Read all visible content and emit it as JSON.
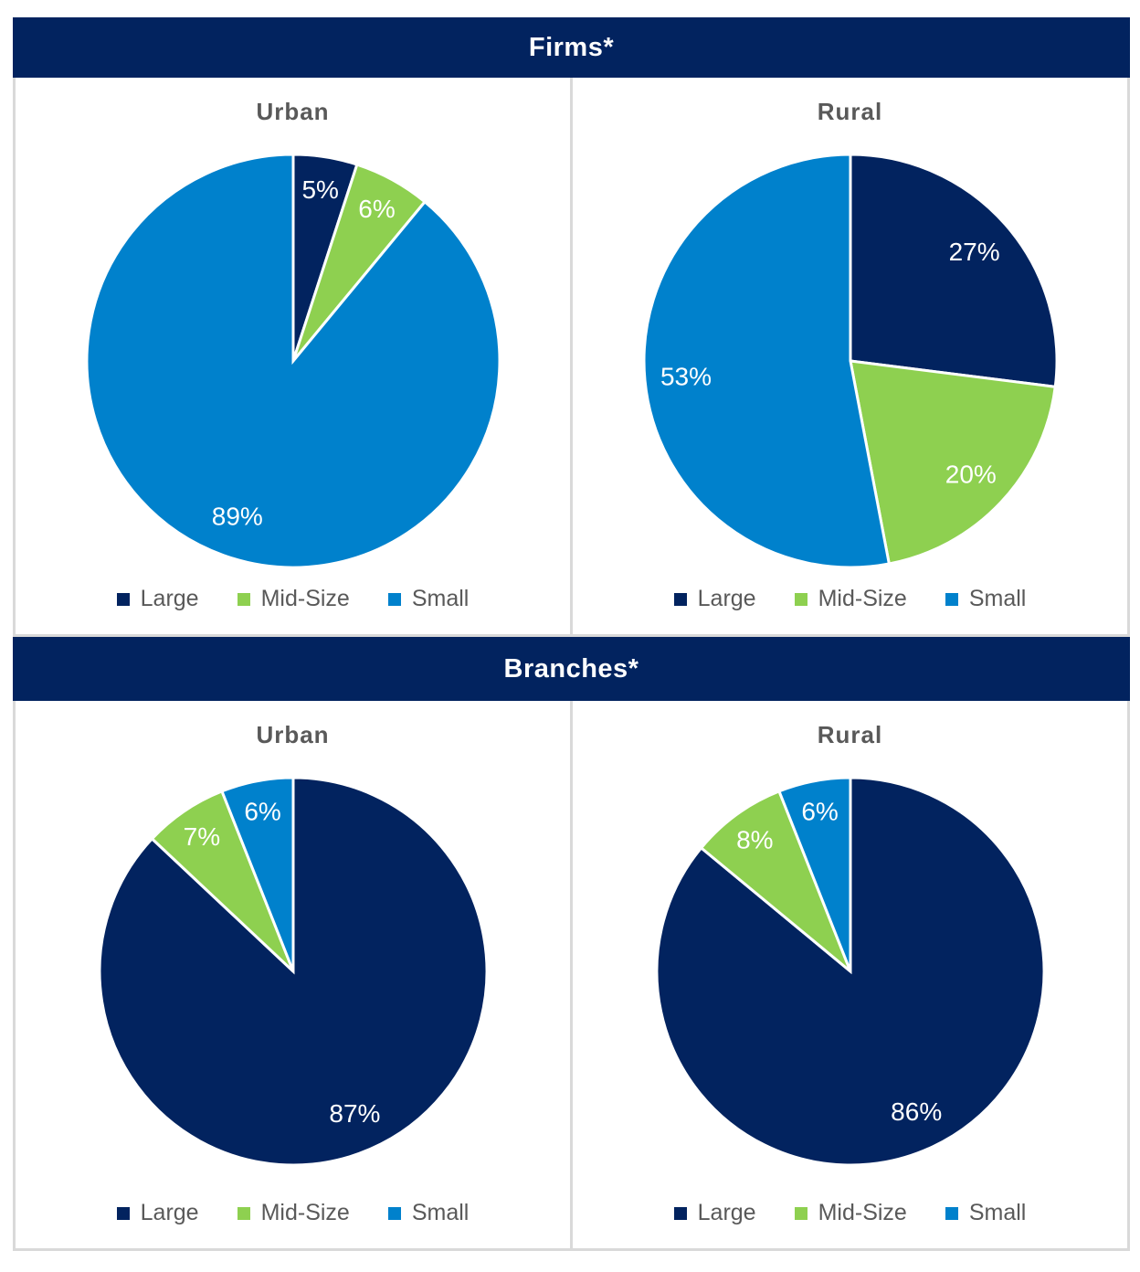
{
  "panels": [
    {
      "title": "Firms*"
    },
    {
      "title": "Branches*"
    }
  ],
  "legend": {
    "items": [
      {
        "label": "Large",
        "color": "#02235f"
      },
      {
        "label": "Mid-Size",
        "color": "#8ed050"
      },
      {
        "label": "Small",
        "color": "#0081cc"
      }
    ]
  },
  "colors": {
    "header_bg": "#02235f",
    "header_text": "#ffffff",
    "chart_title_text": "#595959",
    "legend_text": "#595959",
    "panel_border": "#d9d9d9",
    "slice_label_text": "#ffffff",
    "slice_separator": "#ffffff"
  },
  "chart_data": [
    {
      "type": "pie",
      "panel": "Firms*",
      "title": "Urban",
      "categories": [
        "Large",
        "Mid-Size",
        "Small"
      ],
      "values": [
        5,
        6,
        89
      ],
      "unit": "%",
      "colors": [
        "#02235f",
        "#8ed050",
        "#0081cc"
      ],
      "start_angle_deg": 0,
      "direction": "clockwise",
      "labels_inside": true,
      "legend_position": "bottom"
    },
    {
      "type": "pie",
      "panel": "Firms*",
      "title": "Rural",
      "categories": [
        "Large",
        "Mid-Size",
        "Small"
      ],
      "values": [
        27,
        20,
        53
      ],
      "unit": "%",
      "colors": [
        "#02235f",
        "#8ed050",
        "#0081cc"
      ],
      "start_angle_deg": 0,
      "direction": "clockwise",
      "labels_inside": true,
      "legend_position": "bottom"
    },
    {
      "type": "pie",
      "panel": "Branches*",
      "title": "Urban",
      "categories": [
        "Large",
        "Mid-Size",
        "Small"
      ],
      "values": [
        87,
        7,
        6
      ],
      "unit": "%",
      "colors": [
        "#02235f",
        "#8ed050",
        "#0081cc"
      ],
      "start_angle_deg": 0,
      "direction": "clockwise",
      "labels_inside": true,
      "legend_position": "bottom"
    },
    {
      "type": "pie",
      "panel": "Branches*",
      "title": "Rural",
      "categories": [
        "Large",
        "Mid-Size",
        "Small"
      ],
      "values": [
        86,
        8,
        6
      ],
      "unit": "%",
      "colors": [
        "#02235f",
        "#8ed050",
        "#0081cc"
      ],
      "start_angle_deg": 0,
      "direction": "clockwise",
      "labels_inside": true,
      "legend_position": "bottom"
    }
  ]
}
